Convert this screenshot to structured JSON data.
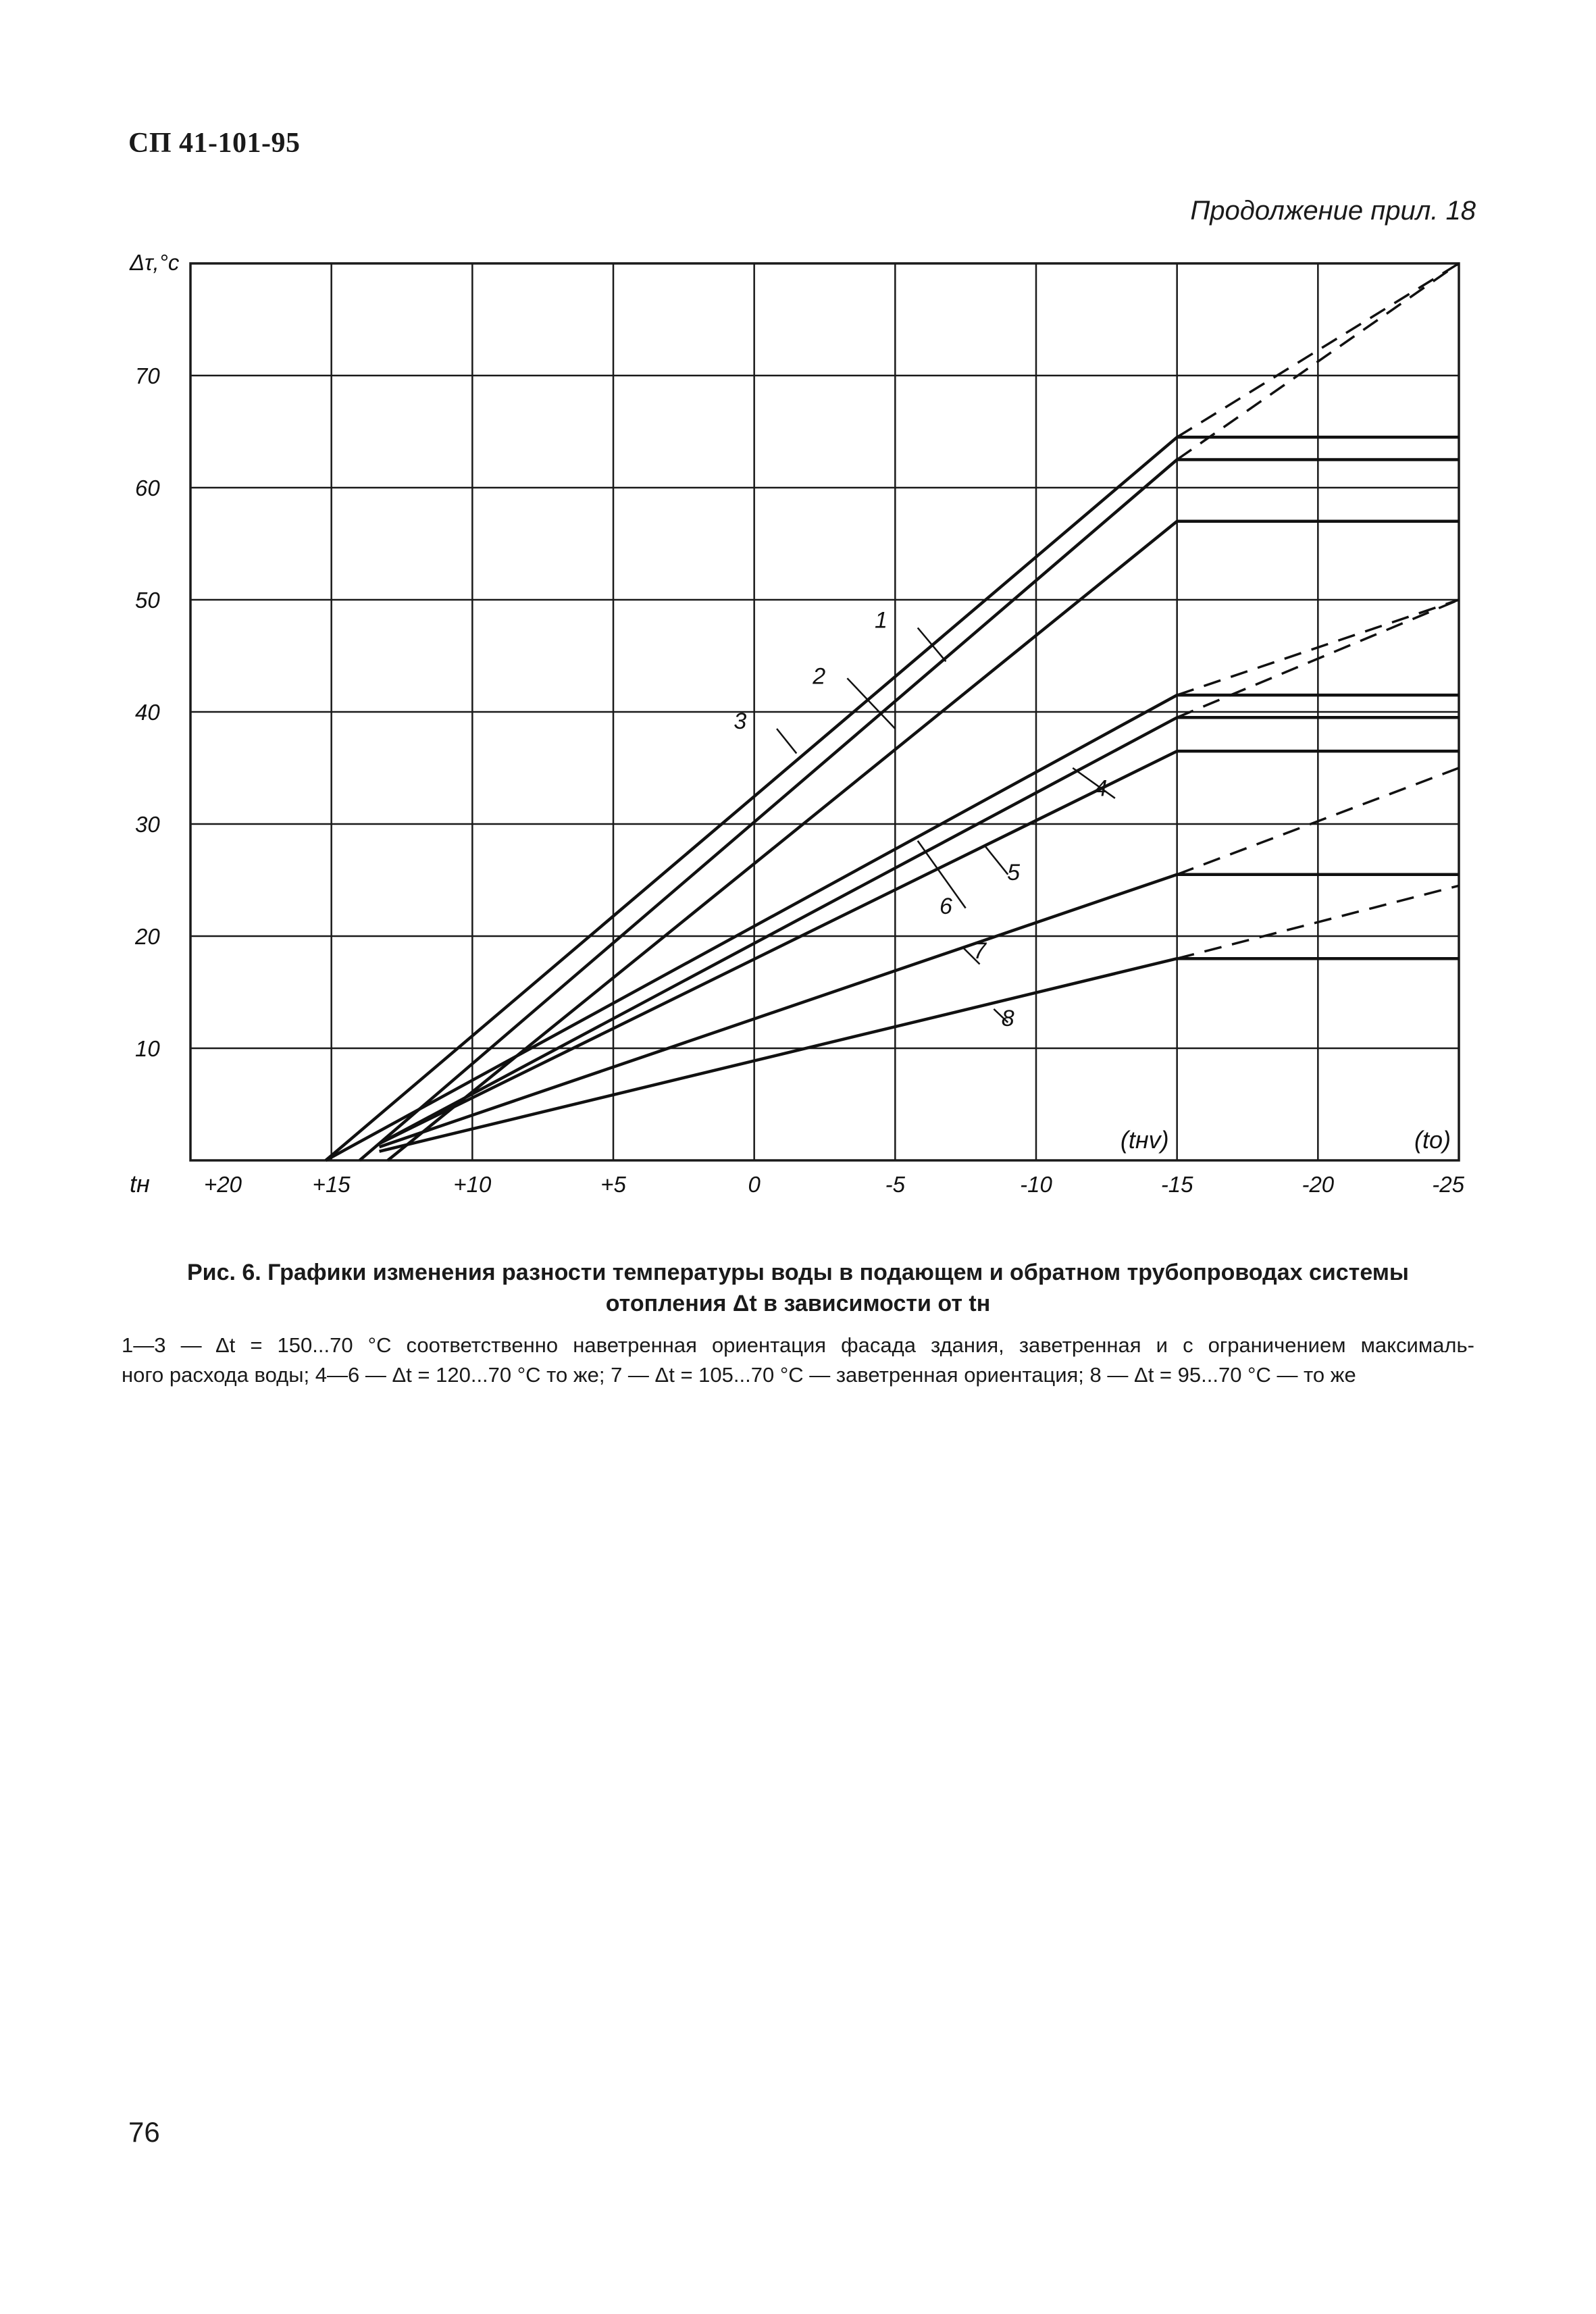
{
  "header": {
    "doc_code": "СП 41-101-95",
    "continuation": "Продолжение прил. 18"
  },
  "chart_data": {
    "type": "line",
    "ylabel": "Δτ,°с",
    "xlabel": "tн",
    "xlim": [
      20,
      -25
    ],
    "ylim": [
      0,
      80
    ],
    "x_ticks": [
      20,
      15,
      10,
      5,
      0,
      -5,
      -10,
      -15,
      -20,
      -25
    ],
    "x_tick_labels": [
      "+20",
      "+15",
      "+10",
      "+5",
      "0",
      "-5",
      "-10",
      "-15",
      "-20",
      "-25"
    ],
    "y_ticks": [
      10,
      20,
      30,
      40,
      50,
      60,
      70
    ],
    "y_tick_labels": [
      "10",
      "20",
      "30",
      "40",
      "50",
      "60",
      "70"
    ],
    "grid": true,
    "axis_markers": [
      {
        "label": "(tнv)",
        "x": -15
      },
      {
        "label": "(tо)",
        "x": -25
      }
    ],
    "series": [
      {
        "name": "1",
        "x": [
          15.2,
          -15,
          -25
        ],
        "y": [
          0,
          64.5,
          64.5
        ],
        "dashed_from": [
          -15,
          64.5
        ],
        "dashed_to": [
          -25,
          80
        ]
      },
      {
        "name": "2",
        "x": [
          14,
          -15,
          -25
        ],
        "y": [
          0,
          62.5,
          62.5
        ],
        "dashed_from": [
          -15,
          62.5
        ],
        "dashed_to": [
          -25,
          80
        ]
      },
      {
        "name": "3",
        "x": [
          13,
          -15,
          -25
        ],
        "y": [
          0,
          57,
          57
        ]
      },
      {
        "name": "4",
        "x": [
          15.2,
          -15,
          -25
        ],
        "y": [
          0,
          41.5,
          41.5
        ],
        "dashed_from": [
          -15,
          41.5
        ],
        "dashed_to": [
          -25,
          50
        ]
      },
      {
        "name": "5",
        "x": [
          13.3,
          -15,
          -25
        ],
        "y": [
          1.5,
          39.5,
          39.5
        ],
        "dashed_from": [
          -15,
          39.5
        ],
        "dashed_to": [
          -25,
          50
        ]
      },
      {
        "name": "6",
        "x": [
          13.3,
          -15,
          -25
        ],
        "y": [
          1.5,
          36.5,
          36.5
        ]
      },
      {
        "name": "7",
        "x": [
          13.3,
          -15,
          -25
        ],
        "y": [
          1.2,
          25.5,
          25.5
        ],
        "dashed_from": [
          -15,
          25.5
        ],
        "dashed_to": [
          -25,
          35
        ]
      },
      {
        "name": "8",
        "x": [
          13.3,
          -15,
          -25
        ],
        "y": [
          0.8,
          18,
          18
        ],
        "dashed_from": [
          -15,
          18
        ],
        "dashed_to": [
          -25,
          24.5
        ]
      }
    ],
    "annotations": [
      {
        "label": "1",
        "text_at": [
          -4.5,
          47.5
        ],
        "line_from": [
          -5.8,
          47.5
        ],
        "line_to": [
          -6.8,
          44.5
        ]
      },
      {
        "label": "2",
        "text_at": [
          -2.3,
          42.5
        ],
        "line_from": [
          -3.3,
          43
        ],
        "line_to": [
          -5,
          38.5
        ]
      },
      {
        "label": "3",
        "text_at": [
          0.5,
          38.5
        ],
        "line_from": [
          -0.8,
          38.5
        ],
        "line_to": [
          -1.5,
          36.3
        ]
      },
      {
        "label": "4",
        "text_at": [
          -12.3,
          32.5
        ],
        "line_from": [
          -11.3,
          35
        ],
        "line_to": [
          -12.8,
          32.3
        ]
      },
      {
        "label": "5",
        "text_at": [
          -9.2,
          25
        ],
        "line_from": [
          -8.2,
          28
        ],
        "line_to": [
          -9,
          25.5
        ]
      },
      {
        "label": "6",
        "text_at": [
          -6.8,
          22
        ],
        "line_from": [
          -5.8,
          28.5
        ],
        "line_to": [
          -7.5,
          22.5
        ]
      },
      {
        "label": "7",
        "text_at": [
          -8,
          18
        ],
        "line_from": [
          -7.4,
          19
        ],
        "line_to": [
          -8,
          17.5
        ]
      },
      {
        "label": "8",
        "text_at": [
          -9,
          12
        ],
        "line_from": [
          -8.5,
          13.5
        ],
        "line_to": [
          -9,
          12.3
        ]
      }
    ]
  },
  "caption": {
    "line1": "Рис. 6. Графики изменения разности температуры воды в подающем и обратном трубопроводах системы",
    "line2": "отопления Δt в зависимости от tн"
  },
  "legend_note": {
    "line1": "1—3 — Δt = 150...70 °С соответственно наветренная ориентация фасада здания, заветренная и с ограничением максималь-",
    "line2": "ного расхода воды; 4—6 — Δt = 120...70 °С то же; 7 — Δt = 105...70 °С — заветренная ориентация; 8 — Δt = 95...70 °С — то же"
  },
  "footer": {
    "page_number": "76"
  }
}
